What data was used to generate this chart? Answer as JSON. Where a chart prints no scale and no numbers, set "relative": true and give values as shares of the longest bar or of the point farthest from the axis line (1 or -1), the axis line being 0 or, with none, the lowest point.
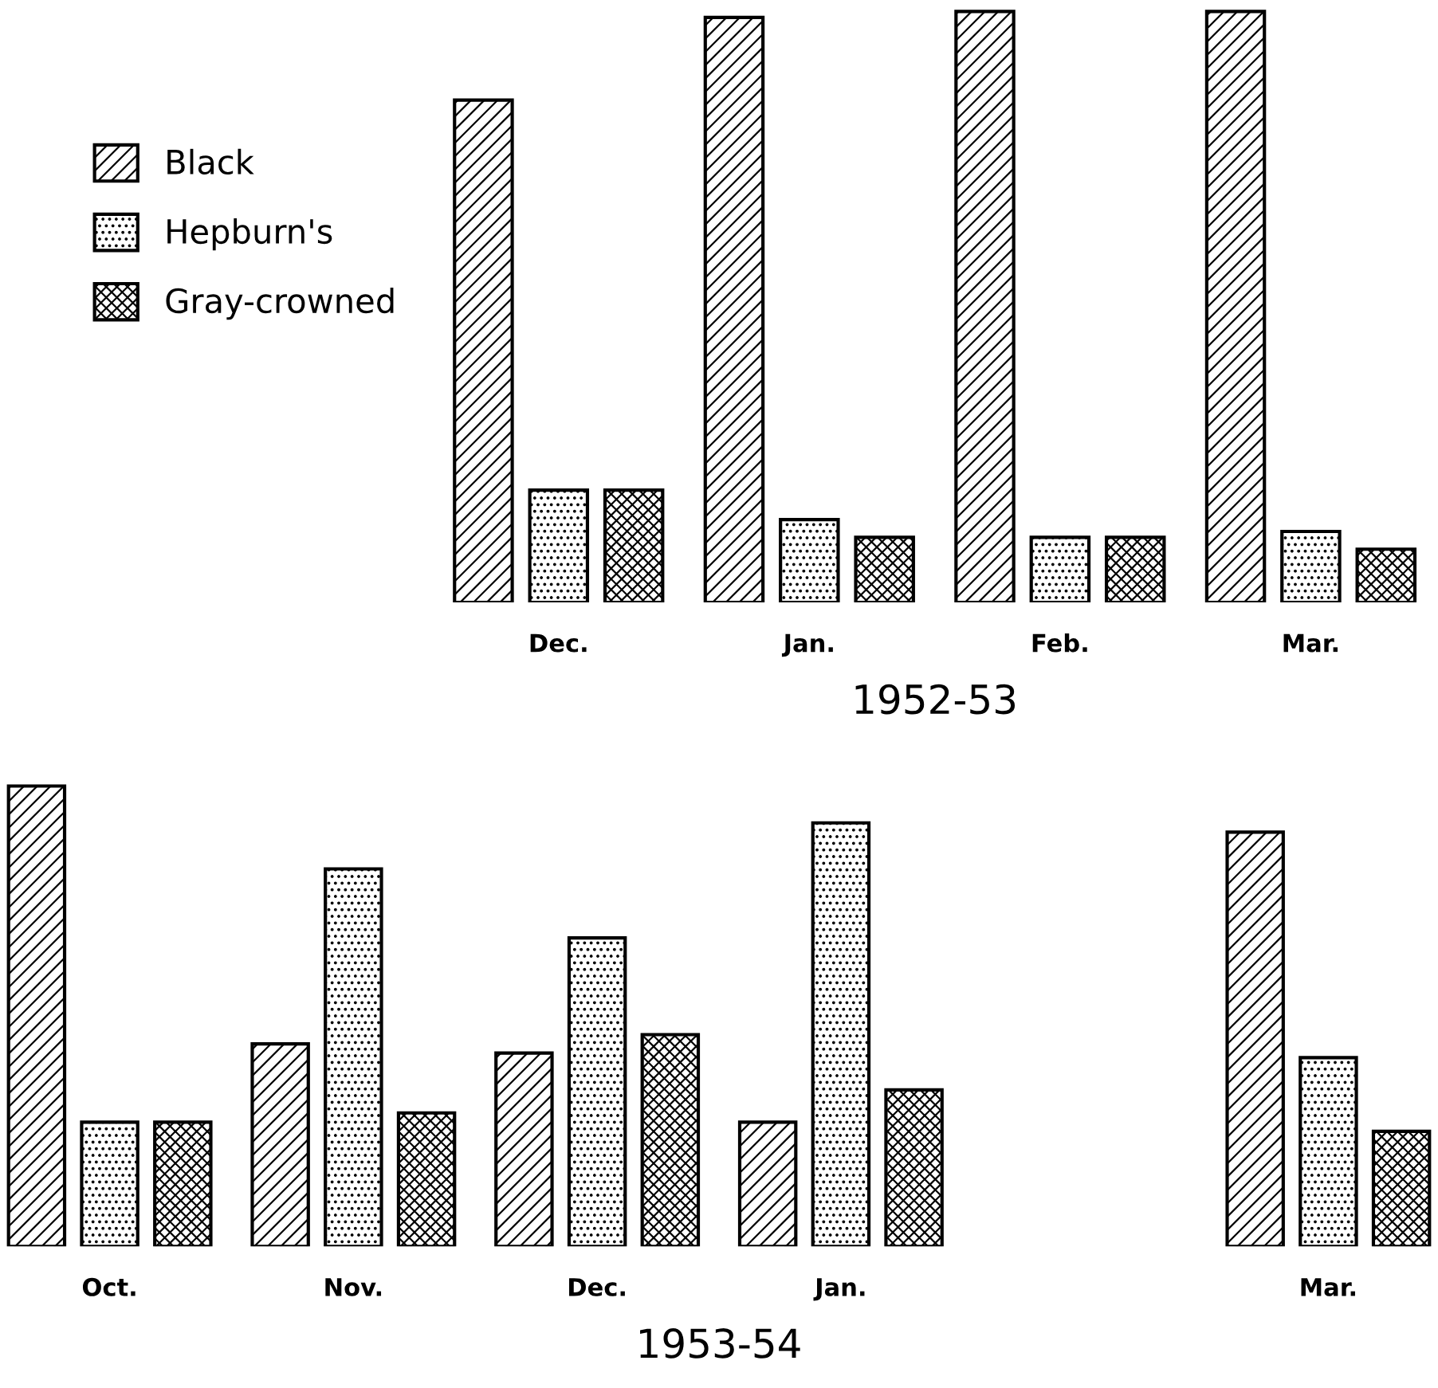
{
  "chart_data": [
    {
      "type": "bar",
      "relative": true,
      "xlabel": "1952-53",
      "categories": [
        "Dec.",
        "Jan.",
        "Feb.",
        "Mar."
      ],
      "legend": "left",
      "series": [
        {
          "name": "Black",
          "color": "#000000",
          "values": [
            0.85,
            0.99,
            1,
            1
          ]
        },
        {
          "name": "Hepburn's",
          "color": "#000000",
          "values": [
            0.19,
            0.14,
            0.11,
            0.12
          ]
        },
        {
          "name": "Gray-crowned",
          "color": "#000000",
          "values": [
            0.19,
            0.11,
            0.11,
            0.09
          ]
        }
      ]
    },
    {
      "type": "bar",
      "relative": true,
      "xlabel": "1953-54",
      "categories": [
        "Oct.",
        "Nov.",
        "Dec.",
        "Jan.",
        null,
        "Mar."
      ],
      "series": [
        {
          "color": "#000000",
          "values": [
            1,
            0.44,
            0.42,
            0.27,
            null,
            0.9
          ]
        },
        {
          "color": "#000000",
          "values": [
            0.27,
            0.82,
            0.67,
            0.92,
            null,
            0.41
          ]
        },
        {
          "color": "#000000",
          "values": [
            0.27,
            0.29,
            0.46,
            0.34,
            null,
            0.25
          ]
        }
      ]
    }
  ]
}
